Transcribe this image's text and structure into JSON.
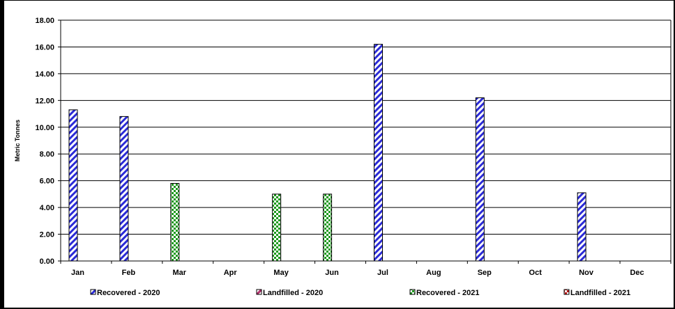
{
  "chart_data": {
    "type": "bar",
    "ylabel": "Metric Tonnes",
    "xlabel": "",
    "ylim": [
      0,
      18
    ],
    "ytick_step": 2,
    "ytick_labels": [
      "0.00",
      "2.00",
      "4.00",
      "6.00",
      "8.00",
      "10.00",
      "12.00",
      "14.00",
      "16.00",
      "18.00"
    ],
    "grid": true,
    "legend_position": "bottom",
    "categories": [
      "Jan",
      "Feb",
      "Mar",
      "Apr",
      "May",
      "Jun",
      "Jul",
      "Aug",
      "Sep",
      "Oct",
      "Nov",
      "Dec"
    ],
    "series": [
      {
        "name": "Recovered - 2020",
        "color": "#2a2ad6",
        "pattern": "diagonal-stripes",
        "values": [
          11.3,
          10.8,
          0,
          0,
          0,
          0,
          16.2,
          0,
          12.2,
          0,
          5.1,
          0
        ]
      },
      {
        "name": "Landfilled - 2020",
        "color": "#b0306a",
        "pattern": "diagonal-stripes",
        "values": [
          0,
          0,
          0,
          0,
          0,
          0,
          0,
          0,
          0,
          0,
          0,
          0
        ]
      },
      {
        "name": "Recovered - 2021",
        "color": "#1e9a1e",
        "pattern": "checker",
        "values": [
          0,
          0,
          5.8,
          0,
          5.0,
          5.0,
          0,
          0,
          0,
          0,
          0,
          0
        ]
      },
      {
        "name": "Landfilled - 2021",
        "color": "#c01818",
        "pattern": "checker",
        "values": [
          0,
          0,
          0,
          0,
          0,
          0,
          0,
          0,
          0,
          0,
          0,
          0
        ]
      }
    ]
  }
}
